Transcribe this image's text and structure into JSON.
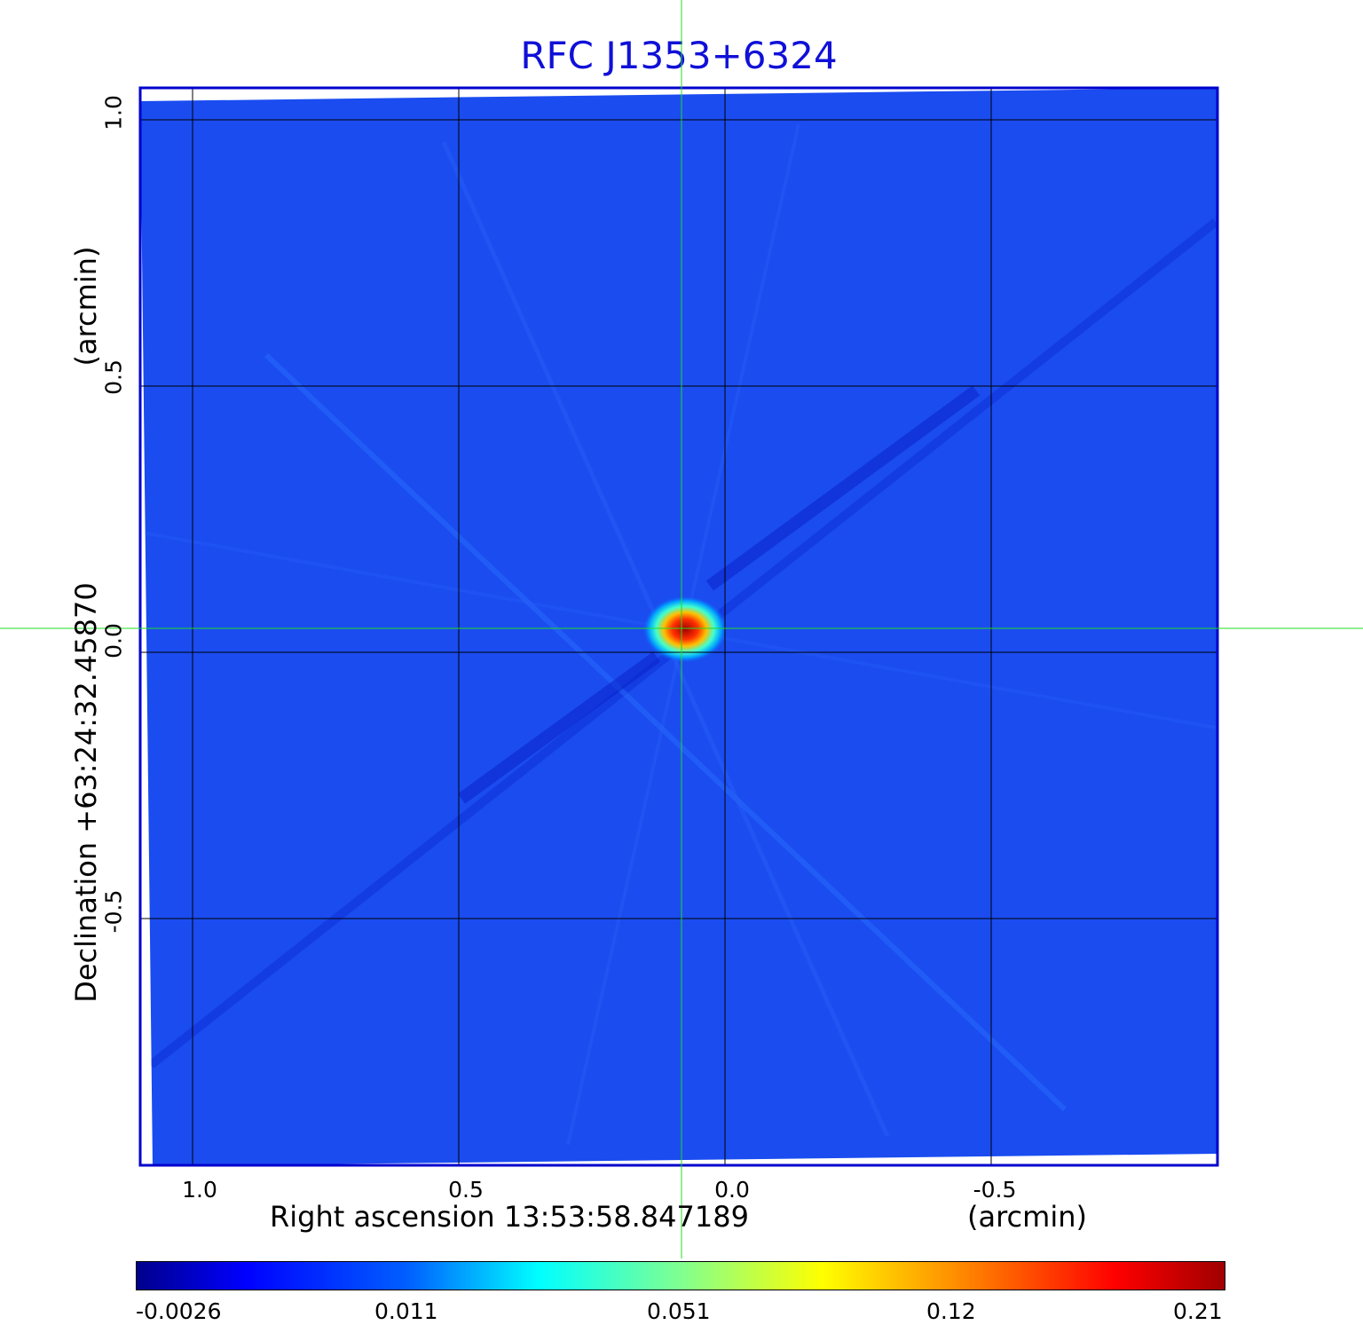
{
  "title": "RFC J1353+6324",
  "x_axis": {
    "label": "Right ascension  13:53:58.847189",
    "unit": "(arcmin)",
    "ticks": [
      "1.0",
      "0.5",
      "0.0",
      "-0.5"
    ]
  },
  "y_axis": {
    "label": "Declination  +63:24:32.45870",
    "unit": "(arcmin)",
    "ticks": [
      "1.0",
      "0.5",
      "0.0",
      "-0.5"
    ]
  },
  "colorbar": {
    "ticks": [
      "-0.0026",
      "0.011",
      "0.051",
      "0.12",
      "0.21"
    ],
    "colormap": "jet"
  },
  "colors": {
    "title": "#1010d8",
    "frame": "#0000cc",
    "background_field": "#1a4cf0",
    "crosshair": "#22dd22",
    "grid": "#000000"
  }
}
